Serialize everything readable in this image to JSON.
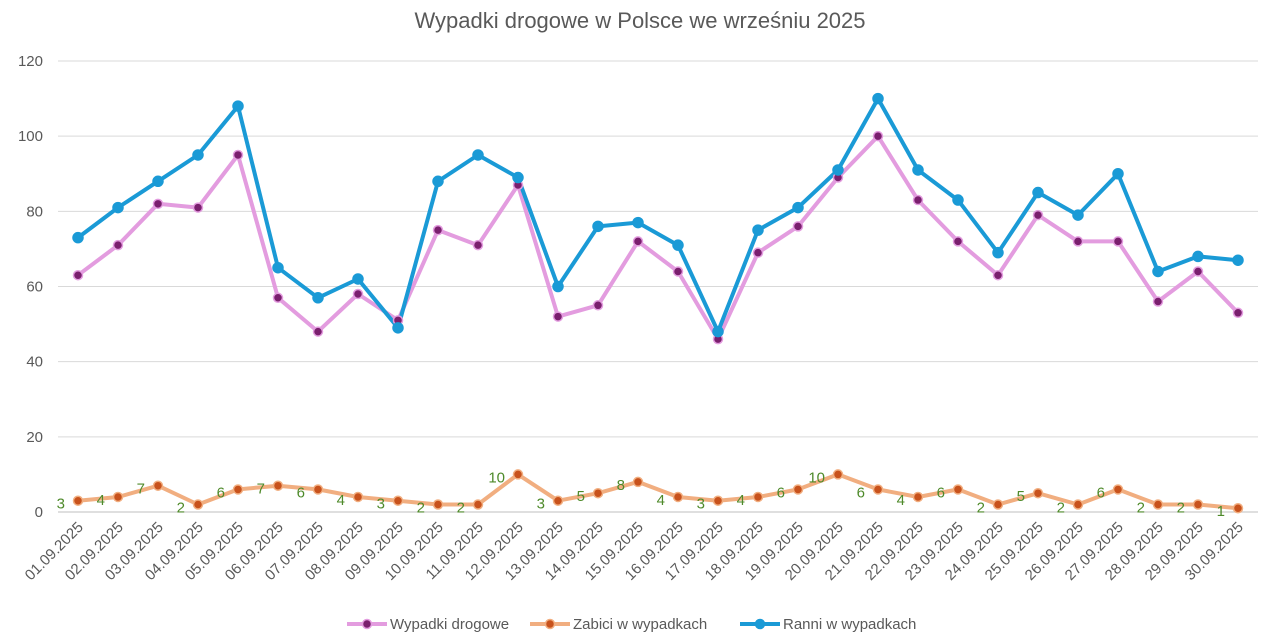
{
  "chart_data": {
    "type": "line",
    "title": "Wypadki drogowe w Polsce we wrześniu 2025",
    "categories": [
      "01.09.2025",
      "02.09.2025",
      "03.09.2025",
      "04.09.2025",
      "05.09.2025",
      "06.09.2025",
      "07.09.2025",
      "08.09.2025",
      "09.09.2025",
      "10.09.2025",
      "11.09.2025",
      "12.09.2025",
      "13.09.2025",
      "14.09.2025",
      "15.09.2025",
      "16.09.2025",
      "17.09.2025",
      "18.09.2025",
      "19.09.2025",
      "20.09.2025",
      "21.09.2025",
      "22.09.2025",
      "23.09.2025",
      "24.09.2025",
      "25.09.2025",
      "26.09.2025",
      "27.09.2025",
      "28.09.2025",
      "29.09.2025",
      "30.09.2025"
    ],
    "ylim": [
      0,
      120
    ],
    "yticks": [
      0,
      20,
      40,
      60,
      80,
      100,
      120
    ],
    "grid": true,
    "legend_position": "bottom",
    "series": [
      {
        "name": "Wypadki drogowe",
        "line_color": "#E39CDF",
        "marker_color": "#7A1F6E",
        "values": [
          63,
          71,
          82,
          81,
          95,
          57,
          48,
          58,
          51,
          75,
          71,
          87,
          52,
          55,
          72,
          64,
          46,
          69,
          76,
          89,
          100,
          83,
          72,
          63,
          79,
          72,
          72,
          56,
          64,
          53
        ]
      },
      {
        "name": "Zabici w wypadkach",
        "line_color": "#F1AE80",
        "marker_color": "#C8521C",
        "data_label_color": "#4E8A2A",
        "values": [
          3,
          4,
          7,
          2,
          6,
          7,
          6,
          4,
          3,
          2,
          2,
          10,
          3,
          5,
          8,
          4,
          3,
          4,
          6,
          10,
          6,
          4,
          6,
          2,
          5,
          2,
          6,
          2,
          2,
          1
        ]
      },
      {
        "name": "Ranni w wypadkach",
        "line_color": "#1A9AD6",
        "marker_color": "#1A9AD6",
        "values": [
          73,
          81,
          88,
          95,
          108,
          65,
          57,
          62,
          49,
          88,
          95,
          89,
          60,
          76,
          77,
          71,
          48,
          75,
          81,
          91,
          110,
          91,
          83,
          69,
          85,
          79,
          90,
          64,
          68,
          67
        ]
      }
    ]
  }
}
